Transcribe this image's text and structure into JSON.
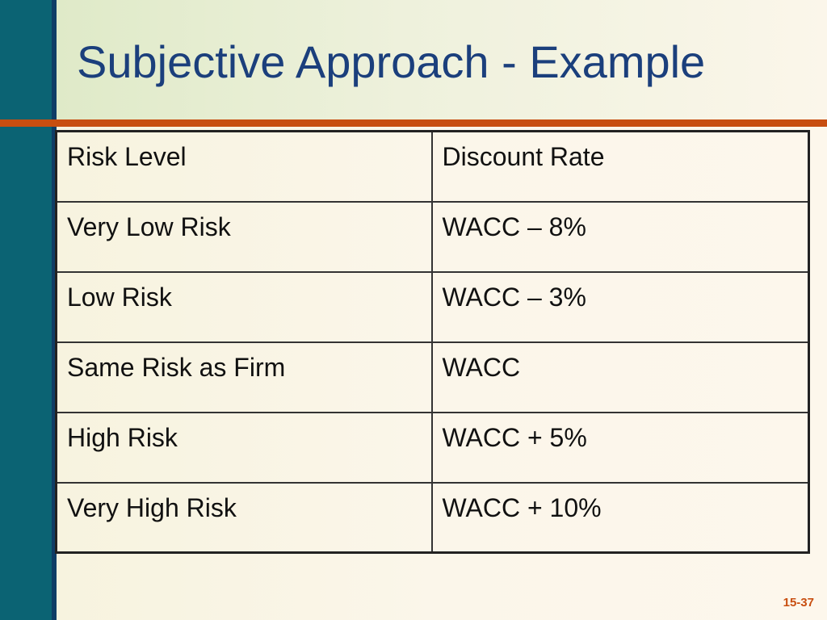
{
  "slide": {
    "title": "Subjective Approach - Example",
    "page_number": "15-37",
    "colors": {
      "left_bar": "#0b6373",
      "title_text": "#1b3f7c",
      "accent_rule": "#c84e10"
    }
  },
  "table": {
    "headers": [
      "Risk Level",
      "Discount Rate"
    ],
    "rows": [
      [
        "Very Low Risk",
        "WACC – 8%"
      ],
      [
        "Low Risk",
        "WACC – 3%"
      ],
      [
        "Same Risk as Firm",
        "WACC"
      ],
      [
        "High Risk",
        "WACC + 5%"
      ],
      [
        "Very High Risk",
        "WACC + 10%"
      ]
    ]
  }
}
